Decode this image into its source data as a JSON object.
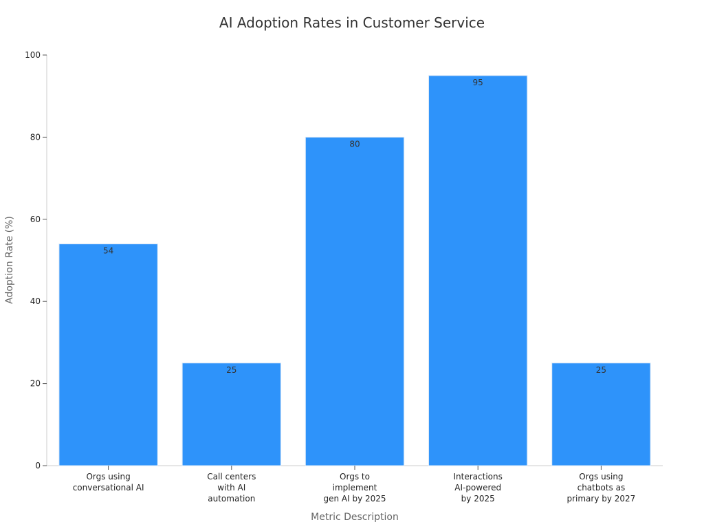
{
  "chart_data": {
    "type": "bar",
    "title": "AI Adoption Rates in Customer Service",
    "xlabel": "Metric Description",
    "ylabel": "Adoption Rate (%)",
    "categories": [
      [
        "Orgs using",
        "conversational AI"
      ],
      [
        "Call centers",
        "with AI",
        "automation"
      ],
      [
        "Orgs to",
        "implement",
        "gen AI by 2025"
      ],
      [
        "Interactions",
        "AI-powered",
        "by 2025"
      ],
      [
        "Orgs using",
        "chatbots as",
        "primary by 2027"
      ]
    ],
    "values": [
      54,
      25,
      80,
      95,
      25
    ],
    "data_labels": [
      "54",
      "25",
      "80",
      "95",
      "25"
    ],
    "ylim": [
      0,
      100
    ],
    "yticks": [
      0,
      20,
      40,
      60,
      80,
      100
    ],
    "grid": false,
    "legend": "none",
    "colors": {
      "bar_fill": "#2e93fa",
      "bar_edge": "#dbe9f7",
      "title": "#333333",
      "axis_title": "#666666",
      "tick_label": "#222222",
      "axis_line": "#cccccc",
      "data_label": "#333333"
    }
  }
}
